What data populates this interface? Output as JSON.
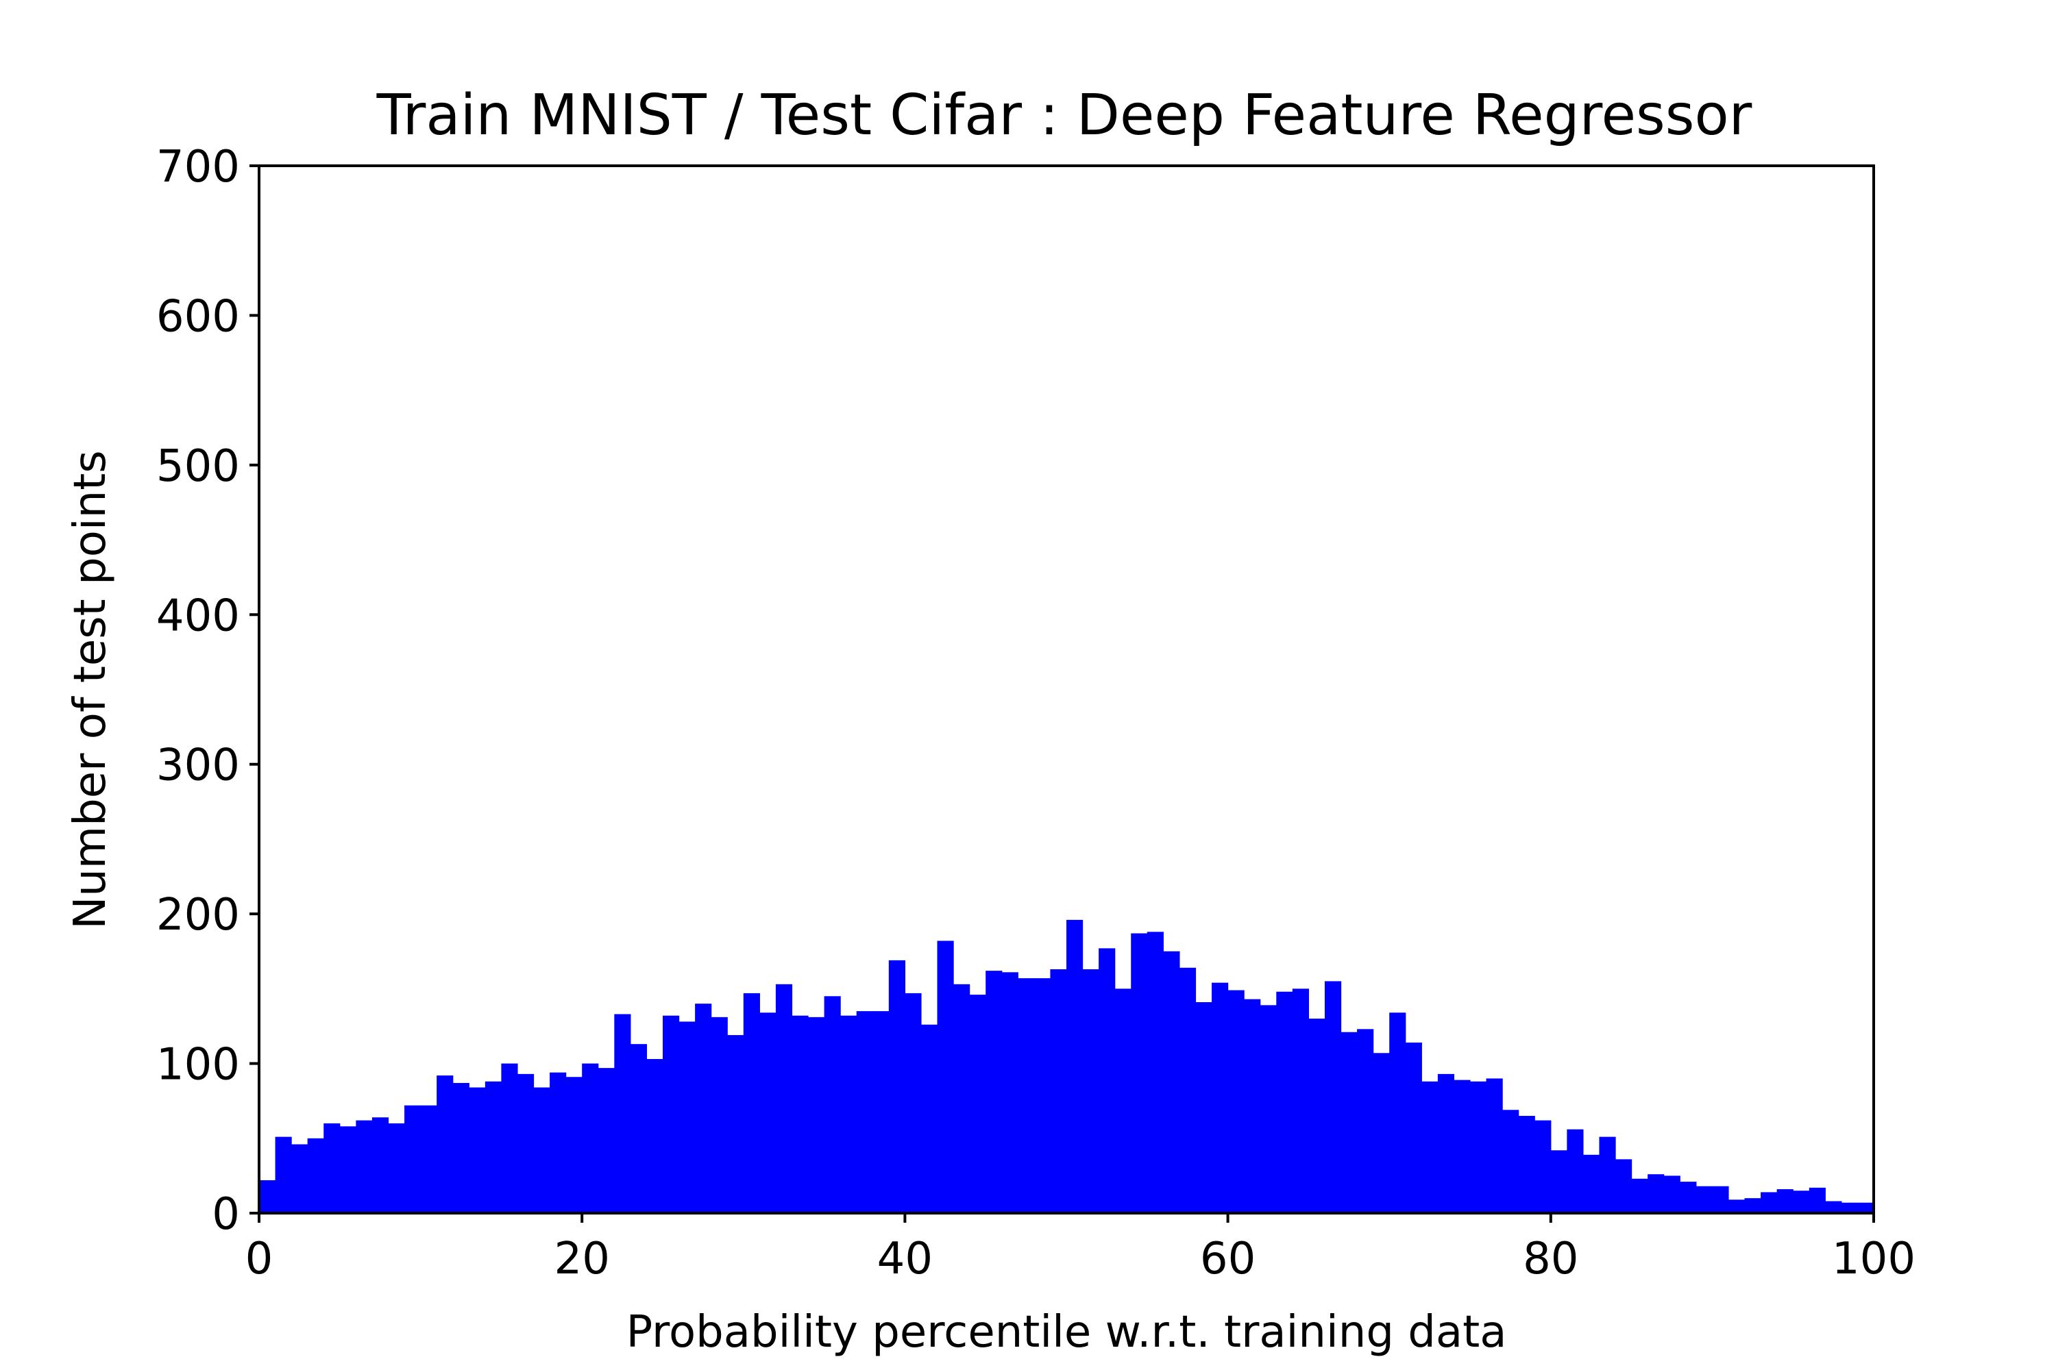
{
  "chart_data": {
    "type": "bar",
    "title": "Train MNIST / Test Cifar : Deep Feature Regressor",
    "xlabel": "Probability percentile w.r.t. training data",
    "ylabel": "Number of test points",
    "xlim": [
      0,
      100
    ],
    "ylim": [
      0,
      700
    ],
    "xticks": [
      0,
      20,
      40,
      60,
      80,
      100
    ],
    "yticks": [
      0,
      100,
      200,
      300,
      400,
      500,
      600,
      700
    ],
    "grid": false,
    "bar_color": "#0000ff",
    "bin_width": 1,
    "x": [
      0,
      1,
      2,
      3,
      4,
      5,
      6,
      7,
      8,
      9,
      10,
      11,
      12,
      13,
      14,
      15,
      16,
      17,
      18,
      19,
      20,
      21,
      22,
      23,
      24,
      25,
      26,
      27,
      28,
      29,
      30,
      31,
      32,
      33,
      34,
      35,
      36,
      37,
      38,
      39,
      40,
      41,
      42,
      43,
      44,
      45,
      46,
      47,
      48,
      49,
      50,
      51,
      52,
      53,
      54,
      55,
      56,
      57,
      58,
      59,
      60,
      61,
      62,
      63,
      64,
      65,
      66,
      67,
      68,
      69,
      70,
      71,
      72,
      73,
      74,
      75,
      76,
      77,
      78,
      79,
      80,
      81,
      82,
      83,
      84,
      85,
      86,
      87,
      88,
      89,
      90,
      91,
      92,
      93,
      94,
      95,
      96,
      97,
      98,
      99
    ],
    "values": [
      22,
      51,
      46,
      50,
      60,
      58,
      62,
      64,
      60,
      72,
      72,
      92,
      87,
      84,
      88,
      100,
      93,
      84,
      94,
      91,
      100,
      97,
      133,
      113,
      103,
      132,
      128,
      140,
      131,
      119,
      147,
      134,
      153,
      132,
      131,
      145,
      132,
      135,
      135,
      169,
      147,
      126,
      182,
      153,
      146,
      162,
      161,
      157,
      157,
      163,
      196,
      163,
      177,
      150,
      187,
      188,
      175,
      164,
      141,
      154,
      149,
      143,
      139,
      148,
      150,
      130,
      155,
      121,
      123,
      107,
      134,
      114,
      88,
      93,
      89,
      88,
      90,
      69,
      65,
      62,
      42,
      56,
      39,
      51,
      36,
      23,
      26,
      25,
      21,
      18,
      18,
      9,
      10,
      14,
      16,
      15,
      17,
      8,
      7,
      7
    ]
  }
}
